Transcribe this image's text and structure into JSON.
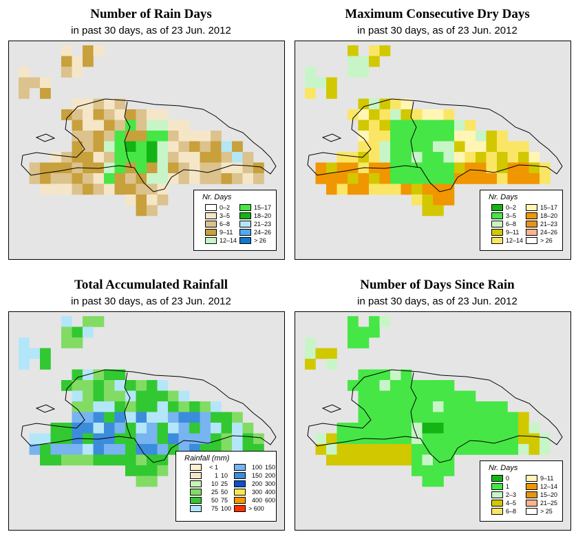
{
  "panels": [
    {
      "id": "rain-days",
      "title": "Number of Rain Days",
      "subtitle": "in past 30 days, as of  23 Jun. 2012",
      "legend": {
        "title": "Nr. Days",
        "items": [
          {
            "label": "0–2",
            "color": "#ffffff"
          },
          {
            "label": "3–5",
            "color": "#f5e6c8"
          },
          {
            "label": "6–8",
            "color": "#dcc28c"
          },
          {
            "label": "9–11",
            "color": "#c8a03c"
          },
          {
            "label": "12–14",
            "color": "#c8f5c8"
          },
          {
            "label": "15–17",
            "color": "#46e646"
          },
          {
            "label": "18–20",
            "color": "#14b414"
          },
          {
            "label": "21–23",
            "color": "#b4e6f5"
          },
          {
            "label": "24–26",
            "color": "#50aaf0"
          },
          {
            "label": "> 26",
            "color": "#1478c8"
          }
        ]
      }
    },
    {
      "id": "dry-days",
      "title": "Maximum Consecutive Dry Days",
      "subtitle": "in past 30 days, as of  23 Jun. 2012",
      "legend": {
        "title": "Nr. Days",
        "items": [
          {
            "label": "0–2",
            "color": "#14b414"
          },
          {
            "label": "3–5",
            "color": "#46e646"
          },
          {
            "label": "6–8",
            "color": "#c8f5c8"
          },
          {
            "label": "9–11",
            "color": "#d2c800"
          },
          {
            "label": "12–14",
            "color": "#fae664"
          },
          {
            "label": "15–17",
            "color": "#fff5b4"
          },
          {
            "label": "18–20",
            "color": "#f09600"
          },
          {
            "label": "21–23",
            "color": "#e69614"
          },
          {
            "label": "24–26",
            "color": "#fab48c"
          },
          {
            "label": "> 26",
            "color": "#ffffff"
          }
        ]
      }
    },
    {
      "id": "rainfall",
      "title": "Total Accumulated Rainfall",
      "subtitle": "in past 30 days, as of  23 Jun. 2012",
      "legend": {
        "title": "Rainfall (mm)",
        "items": [
          {
            "lo": "< 1",
            "hi": "",
            "color": "#fff0d2"
          },
          {
            "lo": "1",
            "hi": "10",
            "color": "#f5e6c8"
          },
          {
            "lo": "10",
            "hi": "25",
            "color": "#c8f5b4"
          },
          {
            "lo": "25",
            "hi": "50",
            "color": "#82dc64"
          },
          {
            "lo": "50",
            "hi": "75",
            "color": "#32c832"
          },
          {
            "lo": "75",
            "hi": "100",
            "color": "#b4e6fa"
          },
          {
            "lo": "100",
            "hi": "150",
            "color": "#78b4f0"
          },
          {
            "lo": "150",
            "hi": "200",
            "color": "#3c8cdc"
          },
          {
            "lo": "200",
            "hi": "300",
            "color": "#0a50c8"
          },
          {
            "lo": "300",
            "hi": "400",
            "color": "#fae650"
          },
          {
            "lo": "400",
            "hi": "600",
            "color": "#fa9600"
          },
          {
            "lo": "> 600",
            "hi": "",
            "color": "#fa3200"
          }
        ]
      }
    },
    {
      "id": "days-since-rain",
      "title": "Number of Days Since Rain",
      "subtitle": "in past 30 days, as of  23 Jun. 2012",
      "legend": {
        "title": "Nr. Days",
        "items": [
          {
            "label": "0",
            "color": "#14b414"
          },
          {
            "label": "1",
            "color": "#46e646"
          },
          {
            "label": "2–3",
            "color": "#c8f5c8"
          },
          {
            "label": "4–5",
            "color": "#d2c800"
          },
          {
            "label": "6–8",
            "color": "#fae664"
          },
          {
            "label": "9–11",
            "color": "#fff5b4"
          },
          {
            "label": "12–14",
            "color": "#f09600"
          },
          {
            "label": "15–20",
            "color": "#e69614"
          },
          {
            "label": "21–25",
            "color": "#fab48c"
          },
          {
            "label": "> 25",
            "color": "#ffffff"
          }
        ]
      }
    }
  ]
}
